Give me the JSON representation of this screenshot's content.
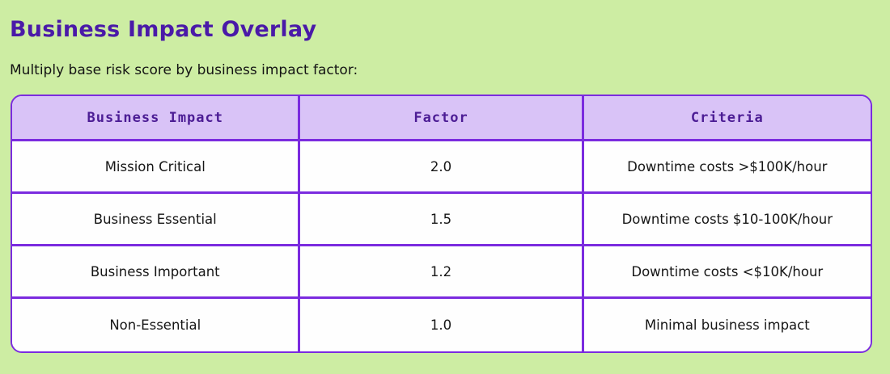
{
  "page": {
    "title": "Business Impact Overlay",
    "subtitle": "Multiply base risk score by business impact factor:",
    "colors": {
      "page_background": "#cdeda3",
      "title_text": "#4a1aa8",
      "table_border": "#7b2bdf",
      "header_background": "#d9c3f7",
      "header_text": "#4c1d95",
      "body_text": "#161616",
      "row_background": "#fefefe"
    }
  },
  "table": {
    "columns": [
      "Business Impact",
      "Factor",
      "Criteria"
    ],
    "rows": [
      [
        "Mission Critical",
        "2.0",
        "Downtime costs >$100K/hour"
      ],
      [
        "Business Essential",
        "1.5",
        "Downtime costs $10-100K/hour"
      ],
      [
        "Business Important",
        "1.2",
        "Downtime costs <$10K/hour"
      ],
      [
        "Non-Essential",
        "1.0",
        "Minimal business impact"
      ]
    ]
  }
}
